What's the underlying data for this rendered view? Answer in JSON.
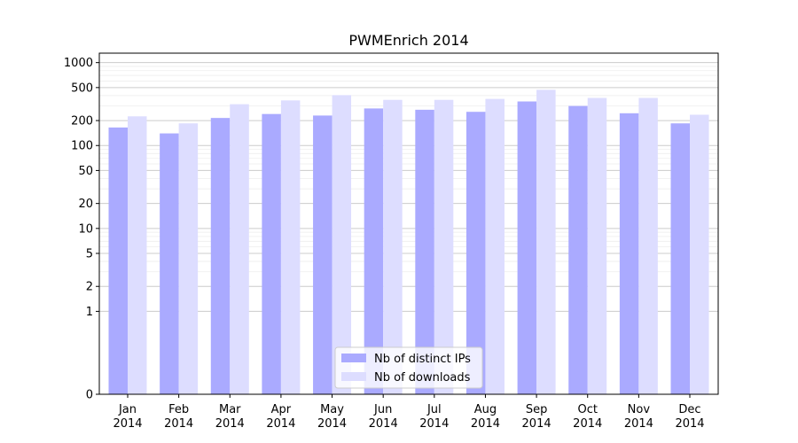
{
  "chart_data": {
    "type": "bar",
    "title": "PWMEnrich 2014",
    "xlabel": "",
    "ylabel": "",
    "y_scale": "symlog",
    "ylim": [
      0,
      1300
    ],
    "y_ticks": [
      0,
      1,
      2,
      5,
      10,
      20,
      50,
      100,
      200,
      500,
      1000
    ],
    "grid": "horizontal",
    "legend_position": "bottom-center",
    "categories": [
      [
        "Jan",
        "2014"
      ],
      [
        "Feb",
        "2014"
      ],
      [
        "Mar",
        "2014"
      ],
      [
        "Apr",
        "2014"
      ],
      [
        "May",
        "2014"
      ],
      [
        "Jun",
        "2014"
      ],
      [
        "Jul",
        "2014"
      ],
      [
        "Aug",
        "2014"
      ],
      [
        "Sep",
        "2014"
      ],
      [
        "Oct",
        "2014"
      ],
      [
        "Nov",
        "2014"
      ],
      [
        "Dec",
        "2014"
      ]
    ],
    "series": [
      {
        "name": "Nb of distinct IPs",
        "color": "#aaaaff",
        "values": [
          165,
          140,
          215,
          240,
          230,
          280,
          270,
          255,
          340,
          300,
          245,
          185
        ]
      },
      {
        "name": "Nb of downloads",
        "color": "#ddddff",
        "values": [
          225,
          185,
          315,
          350,
          405,
          355,
          355,
          365,
          470,
          375,
          375,
          235
        ]
      }
    ]
  }
}
